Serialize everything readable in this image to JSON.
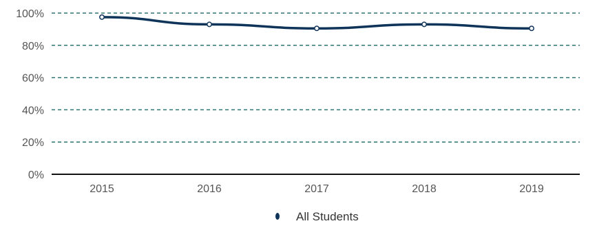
{
  "chart_data": {
    "type": "line",
    "categories": [
      "2015",
      "2016",
      "2017",
      "2018",
      "2019"
    ],
    "series": [
      {
        "name": "All Students",
        "values": [
          97.5,
          93,
          90.5,
          93,
          90.5
        ],
        "color": "#0e3459"
      }
    ],
    "ylim": [
      0,
      100
    ],
    "yticks": [
      0,
      20,
      40,
      60,
      80,
      100
    ],
    "ytick_labels": [
      "0%",
      "20%",
      "40%",
      "60%",
      "80%",
      "100%"
    ],
    "grid": true,
    "grid_color": "#2e7573",
    "axis_color": "#111111",
    "legend_position": "bottom-center"
  }
}
